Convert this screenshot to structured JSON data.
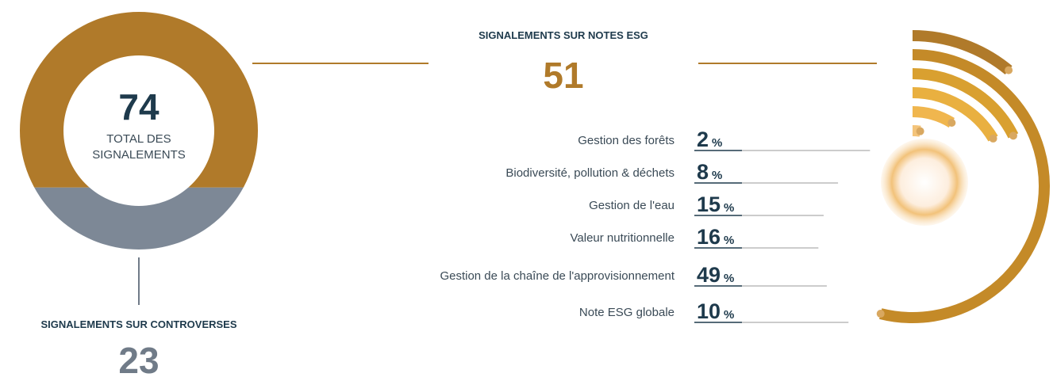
{
  "total": {
    "value": 74,
    "label": "TOTAL DES SIGNALEMENTS"
  },
  "esg": {
    "title": "SIGNALEMENTS SUR NOTES ESG",
    "value": 51,
    "unit": "%",
    "items": [
      {
        "label": "Gestion des forêts",
        "value": 2
      },
      {
        "label": "Biodiversité, pollution & déchets",
        "value": 8
      },
      {
        "label": "Gestion de l'eau",
        "value": 15
      },
      {
        "label": "Valeur nutritionnelle",
        "value": 16
      },
      {
        "label": "Gestion de la chaîne de l'approvisionnement",
        "value": 49
      },
      {
        "label": "Note ESG globale",
        "value": 10
      }
    ]
  },
  "controversies": {
    "title": "SIGNALEMENTS SUR CONTROVERSES",
    "value": 23
  }
}
